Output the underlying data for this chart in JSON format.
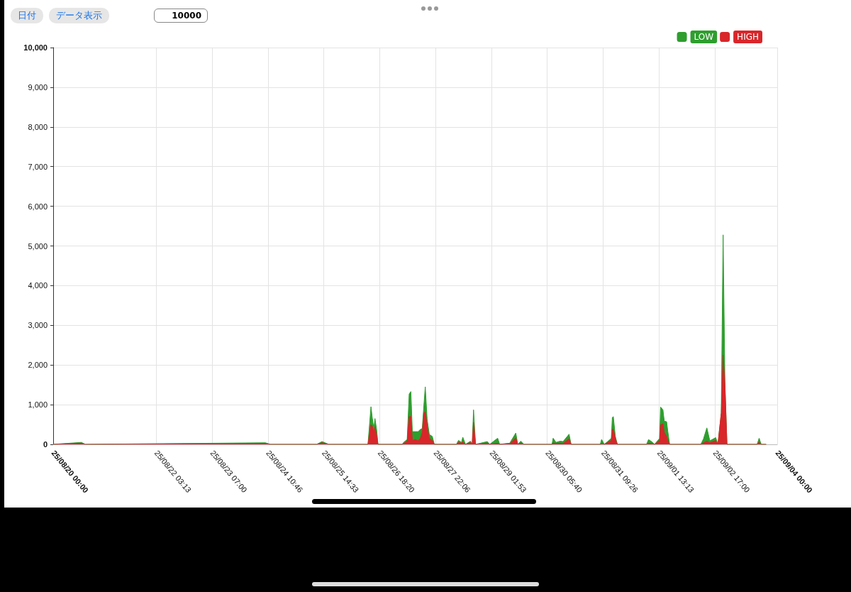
{
  "chart_data": {
    "type": "area",
    "stacked": true,
    "grid": true,
    "legend": "top right",
    "marker": "none",
    "annotations": [
      "日付",
      "データ表示",
      "10000"
    ],
    "x": [
      "--08-20T00:00",
      "--08-20T14:00",
      "--08-20T16:00",
      "--08-24T09:30",
      "--08-24T12:00",
      "--08-25T11:00",
      "--08-25T13:40",
      "--08-25T17:00",
      "--08-26T12:30",
      "--08-26T14:00",
      "--08-26T14:40",
      "--08-26T15:25",
      "--08-26T16:00",
      "--08-26T16:50",
      "--08-26T17:30",
      "--08-27T05:30",
      "--08-27T06:25",
      "--08-27T08:00",
      "--08-27T09:00",
      "--08-27T09:50",
      "--08-27T10:35",
      "--08-27T12:00",
      "--08-27T13:30",
      "--08-27T14:30",
      "--08-27T15:30",
      "--08-27T16:20",
      "--08-27T17:00",
      "--08-27T17:55",
      "--08-27T19:00",
      "--08-27T20:30",
      "--08-27T21:30",
      "--08-28T08:30",
      "--08-28T09:30",
      "--08-28T11:00",
      "--08-28T11:40",
      "--08-28T13:00",
      "--08-28T15:30",
      "--08-28T16:20",
      "--08-28T17:00",
      "--08-28T18:00",
      "--08-28T23:50",
      "--08-29T01:00",
      "--08-29T05:00",
      "--08-29T06:00",
      "--08-29T11:00",
      "--08-29T14:00",
      "--08-29T15:00",
      "--08-29T16:30",
      "--08-29T18:00",
      "--08-30T08:00",
      "--08-30T08:35",
      "--08-30T10:00",
      "--08-30T12:00",
      "--08-30T13:30",
      "--08-30T16:30",
      "--08-30T17:30",
      "--08-31T08:00",
      "--08-31T08:40",
      "--08-31T10:00",
      "--08-31T13:30",
      "--08-31T14:00",
      "--08-31T14:30",
      "--08-31T15:30",
      "--08-31T16:30",
      "--09-01T07:00",
      "--09-01T08:00",
      "--09-01T09:30",
      "--09-01T11:00",
      "--09-01T13:30",
      "--09-01T14:00",
      "--09-01T15:10",
      "--09-01T15:50",
      "--09-01T17:00",
      "--09-01T17:35",
      "--09-01T18:30",
      "--09-02T10:00",
      "--09-02T11:20",
      "--09-02T13:00",
      "--09-02T14:30",
      "--09-02T17:25",
      "--09-02T18:30",
      "--09-02T20:10",
      "--09-02T21:05",
      "--09-02T22:00",
      "--09-02T23:00",
      "--09-03T14:00",
      "--09-03T15:00",
      "--09-03T16:00",
      "--09-03T18:30"
    ],
    "series": [
      {
        "name": "HIGH",
        "color": "#d9262a",
        "values": [
          0,
          30,
          0,
          20,
          0,
          0,
          40,
          0,
          0,
          500,
          460,
          300,
          435,
          215,
          0,
          0,
          30,
          80,
          700,
          700,
          100,
          120,
          90,
          150,
          300,
          790,
          820,
          465,
          150,
          100,
          0,
          0,
          50,
          30,
          60,
          0,
          50,
          0,
          555,
          0,
          30,
          0,
          30,
          0,
          20,
          160,
          0,
          30,
          0,
          0,
          40,
          20,
          30,
          20,
          140,
          0,
          0,
          20,
          0,
          100,
          375,
          380,
          150,
          0,
          0,
          30,
          20,
          0,
          100,
          495,
          520,
          300,
          200,
          100,
          0,
          0,
          40,
          80,
          40,
          100,
          0,
          790,
          2250,
          1500,
          0,
          0,
          60,
          0,
          0
        ]
      },
      {
        "name": "LOW",
        "color": "#2e9e2e",
        "values": [
          0,
          20,
          0,
          20,
          0,
          0,
          30,
          0,
          0,
          450,
          200,
          100,
          215,
          145,
          0,
          0,
          30,
          40,
          570,
          630,
          220,
          200,
          230,
          225,
          100,
          210,
          630,
          175,
          100,
          100,
          0,
          0,
          50,
          20,
          120,
          0,
          30,
          0,
          315,
          0,
          40,
          0,
          125,
          0,
          10,
          125,
          0,
          50,
          0,
          0,
          115,
          30,
          50,
          50,
          115,
          0,
          0,
          105,
          0,
          50,
          300,
          320,
          50,
          0,
          0,
          90,
          50,
          0,
          50,
          445,
          350,
          285,
          370,
          230,
          0,
          0,
          100,
          335,
          50,
          70,
          0,
          0,
          3030,
          0,
          0,
          0,
          95,
          0,
          0
        ]
      }
    ],
    "xlim": [
      "--08-20T00:00",
      "--09-04T00:00"
    ],
    "xticks": [
      {
        "value": "--08-20T00:00",
        "label": "25/08/20 00:00"
      },
      {
        "value": "--08-22T03:13",
        "label": "25/08/22 03:13"
      },
      {
        "value": "--08-23T07:00",
        "label": "25/08/23 07:00"
      },
      {
        "value": "--08-24T10:46",
        "label": "25/08/24 10:46"
      },
      {
        "value": "--08-25T14:33",
        "label": "25/08/25 14:33"
      },
      {
        "value": "--08-26T18:20",
        "label": "25/08/26 18:20"
      },
      {
        "value": "--08-27T22:06",
        "label": "25/08/27 22:06"
      },
      {
        "value": "--08-29T01:53",
        "label": "25/08/29 01:53"
      },
      {
        "value": "--08-30T05:40",
        "label": "25/08/30 05:40"
      },
      {
        "value": "--08-31T09:26",
        "label": "25/08/31 09:26"
      },
      {
        "value": "--09-01T13:13",
        "label": "25/09/01 13:13"
      },
      {
        "value": "--09-02T17:00",
        "label": "25/09/02 17:00"
      },
      {
        "value": "--09-04T00:00",
        "label": "25/09/04 00:00"
      }
    ],
    "ylim": [
      0,
      10000
    ],
    "yticks": [
      0,
      {
        "value": 1000,
        "label": "1,000"
      },
      {
        "value": 2000,
        "label": "2,000"
      },
      {
        "value": 3000,
        "label": "3,000"
      },
      {
        "value": 4000,
        "label": "4,000"
      },
      {
        "value": 5000,
        "label": "5,000"
      },
      {
        "value": 6000,
        "label": "6,000"
      },
      {
        "value": 7000,
        "label": "7,000"
      },
      {
        "value": 8000,
        "label": "8,000"
      },
      {
        "value": 9000,
        "label": "9,000"
      },
      {
        "value": 10000,
        "label": "10,000"
      }
    ]
  }
}
